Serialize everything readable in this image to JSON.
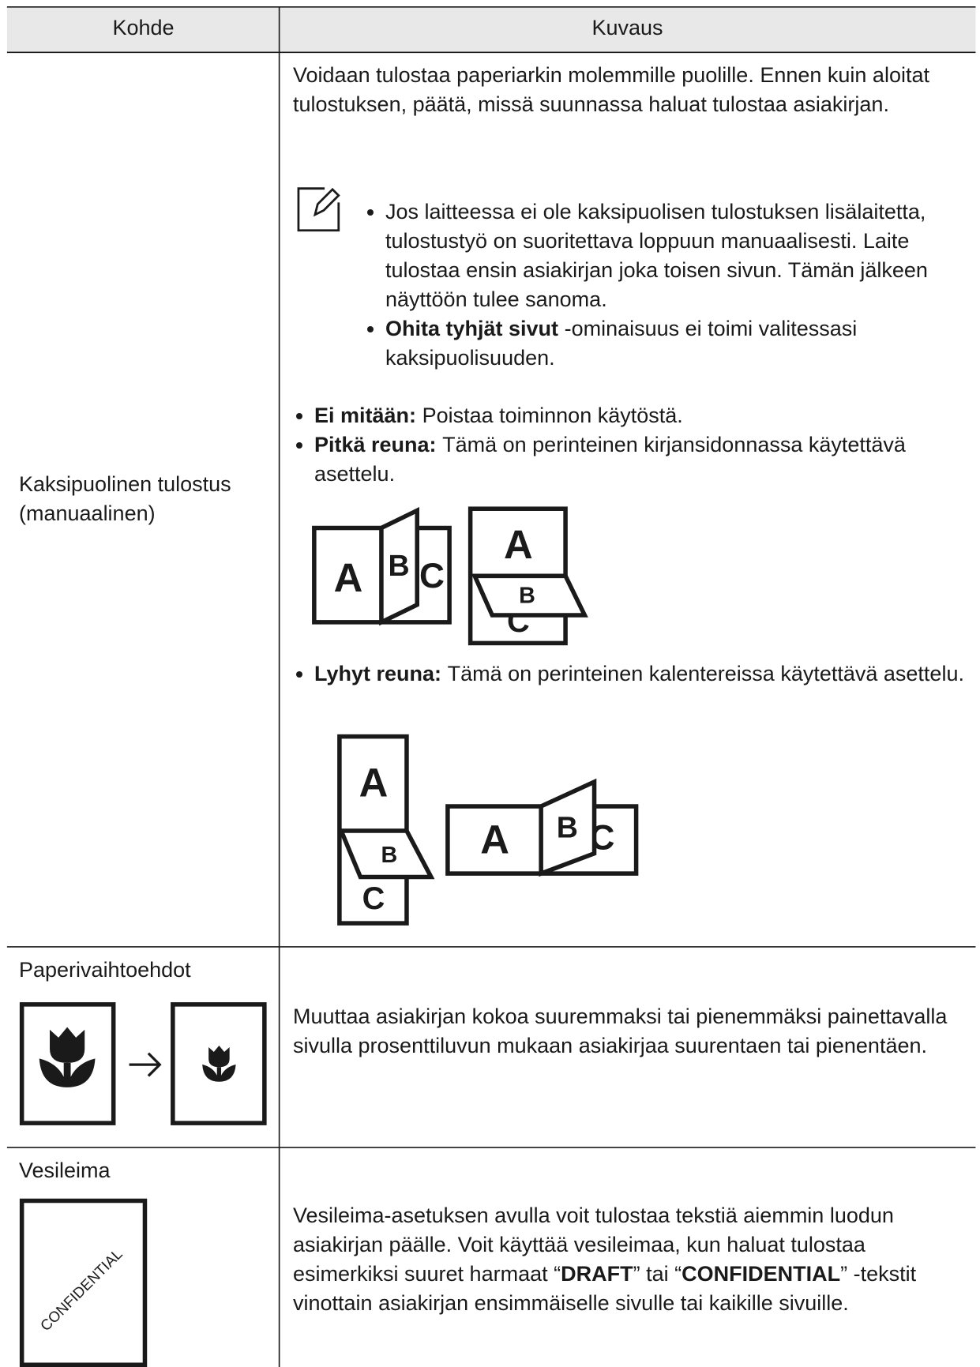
{
  "table": {
    "headers": [
      "Kohde",
      "Kuvaus"
    ],
    "rows": [
      {
        "item": "Kaksipuolinen tulostus (manuaalinen)",
        "description": "Voidaan tulostaa paperiarkin molemmille puolille. Ennen kuin aloitat tulostuksen, päätä, missä suunnassa haluat tulostaa asiakirjan.",
        "notes": [
          {
            "text": "Jos laitteessa ei ole kaksipuolisen tulostuksen lisälaitetta, tulostustyö on suoritettava loppuun manuaalisesti. Laite tulostaa ensin asiakirjan joka toisen sivun. Tämän jälkeen näyttöön tulee sanoma."
          },
          {
            "term": "Ohita tyhjät sivut",
            "text": "-ominaisuus ei toimi valitessasi kaksipuolisuuden."
          }
        ],
        "options": [
          {
            "term": "Ei mitään:",
            "text": "Poistaa toiminnon käytöstä."
          },
          {
            "term": "Pitkä reuna:",
            "text": "Tämä on perinteinen kirjansidonnassa käytettävä asettelu."
          },
          {
            "term": "Lyhyt reuna:",
            "text": "Tämä on perinteinen kalentereissa käytettävä asettelu."
          }
        ],
        "illustration_letters": [
          "A",
          "B",
          "C"
        ]
      },
      {
        "item": "Paperivaihtoehdot",
        "description": "Muuttaa asiakirjan kokoa suuremmaksi tai pienemmäksi painettavalla sivulla prosenttiluvun mukaan asiakirjaa suurentaen tai pienentäen."
      },
      {
        "item": "Vesileima",
        "icon_text": "CONFIDENTIAL",
        "description": [
          "Vesileima-asetuksen avulla voit tulostaa tekstiä aiemmin luodun asiakirjan päälle. Voit käyttää vesileimaa, kun haluat tulostaa esimerkiksi suuret harmaat “",
          "DRAFT",
          "” tai “",
          "CONFIDENTIAL",
          "” -tekstit vinottain asiakirjan ensimmäiselle sivulle tai kaikille sivuille."
        ]
      }
    ]
  }
}
